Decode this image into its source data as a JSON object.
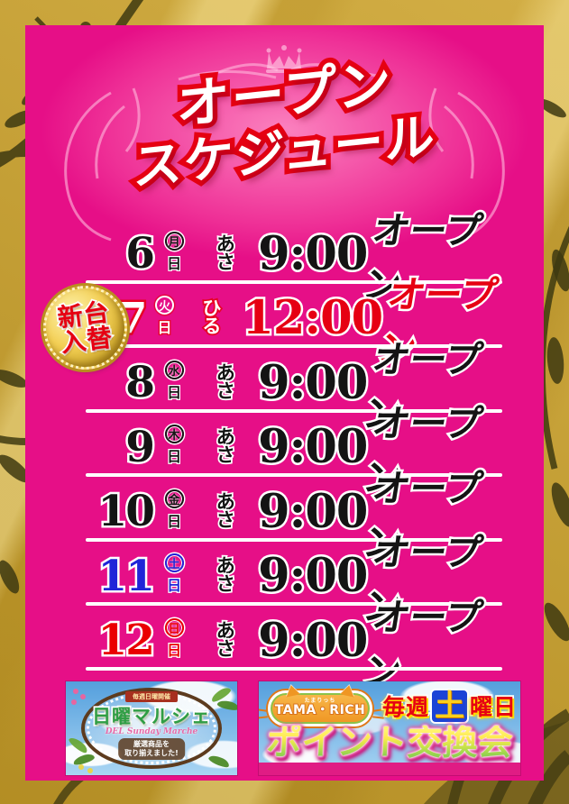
{
  "poster": {
    "title_line1": "オープン",
    "title_line2": "スケジュール"
  },
  "schedule": {
    "rows": [
      {
        "date": "6",
        "weekday": "月",
        "suffix": "日",
        "period_chars": [
          "あ",
          "さ"
        ],
        "time": "9:00",
        "open": "オープン",
        "variant": "default"
      },
      {
        "date": "7",
        "weekday": "火",
        "suffix": "日",
        "period_chars": [
          "ひ",
          "る"
        ],
        "time": "12:00",
        "open": "オープン",
        "variant": "special"
      },
      {
        "date": "8",
        "weekday": "水",
        "suffix": "日",
        "period_chars": [
          "あ",
          "さ"
        ],
        "time": "9:00",
        "open": "オープン",
        "variant": "default"
      },
      {
        "date": "9",
        "weekday": "木",
        "suffix": "日",
        "period_chars": [
          "あ",
          "さ"
        ],
        "time": "9:00",
        "open": "オープン",
        "variant": "default"
      },
      {
        "date": "10",
        "weekday": "金",
        "suffix": "日",
        "period_chars": [
          "あ",
          "さ"
        ],
        "time": "9:00",
        "open": "オープン",
        "variant": "default"
      },
      {
        "date": "11",
        "weekday": "土",
        "suffix": "日",
        "period_chars": [
          "あ",
          "さ"
        ],
        "time": "9:00",
        "open": "オープン",
        "variant": "saturday"
      },
      {
        "date": "12",
        "weekday": "日",
        "suffix": "日",
        "period_chars": [
          "あ",
          "さ"
        ],
        "time": "9:00",
        "open": "オープン",
        "variant": "sunday"
      }
    ],
    "new_machine_badge": {
      "line1": "新台",
      "line2": "入替"
    }
  },
  "banners": {
    "sunday_marche": {
      "schedule_note": "毎週日曜開催",
      "title": "日曜マルシェ",
      "subtitle_script": "DEL Sunday Marche",
      "description_line1": "厳選商品を",
      "description_line2": "取り揃えました!"
    },
    "point_exchange": {
      "logo_small": "たまりっち",
      "logo": "TAMA・RICH",
      "weekly_prefix": "毎週",
      "weekly_day": "土",
      "weekly_suffix": "曜日",
      "title": "ポイント交換会"
    }
  },
  "colors": {
    "panel_magenta": "#e60f87",
    "accent_red": "#e60012",
    "saturday_blue": "#2025d8",
    "sunday_red": "#ea0000",
    "frame_gold": "#c79d2b"
  }
}
